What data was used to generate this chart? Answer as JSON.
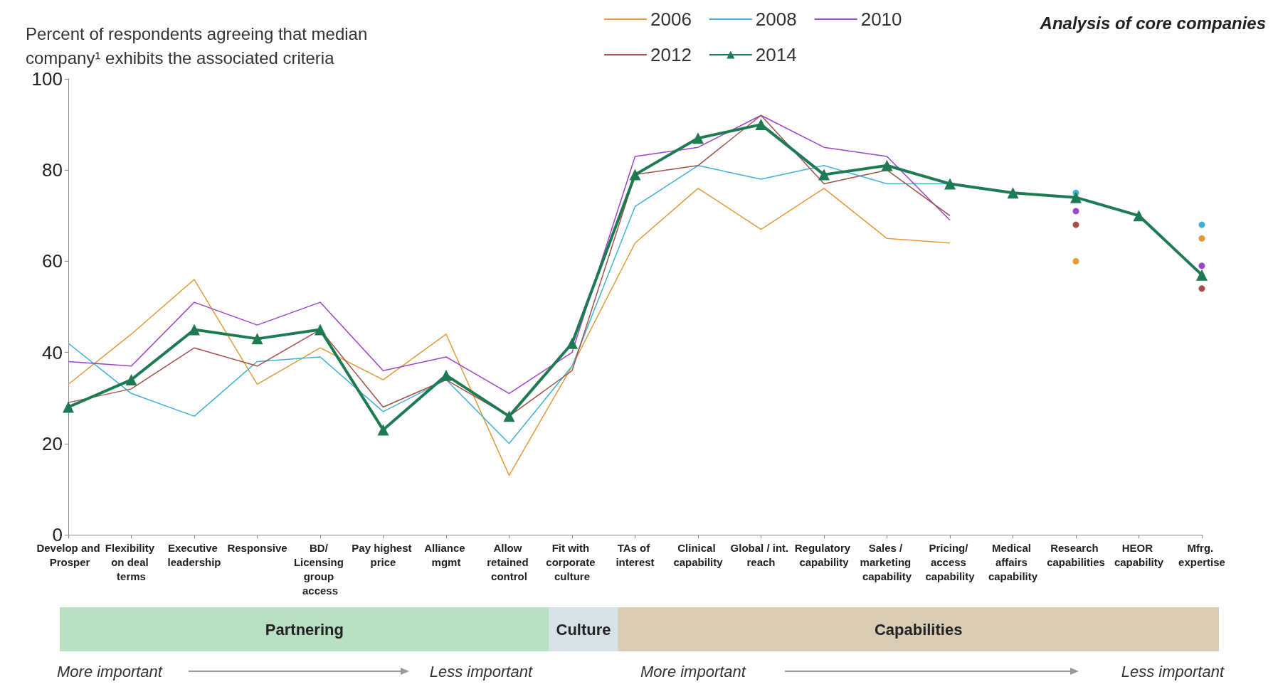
{
  "chart_data": {
    "type": "line",
    "ylabel": "Percent of respondents agreeing that median company¹ exhibits the associated criteria",
    "categories": [
      "Develop and Prosper",
      "Flexibility on deal terms",
      "Executive leadership",
      "Responsive",
      "BD/ Licensing group access",
      "Pay highest price",
      "Alliance mgmt",
      "Allow retained control",
      "Fit with corporate culture",
      "TAs of interest",
      "Clinical capability",
      "Global / int. reach",
      "Regulatory capability",
      "Sales / marketing capability",
      "Pricing/ access capability",
      "Medical affairs capability",
      "Research capabilities",
      "HEOR capability",
      "Mfrg. expertise"
    ],
    "series": [
      {
        "name": "2006",
        "color": "#e39a3b",
        "marker": "none",
        "values": [
          33,
          44,
          56,
          33,
          41,
          34,
          44,
          13,
          37,
          64,
          76,
          67,
          76,
          65,
          64,
          null,
          60,
          null,
          65
        ]
      },
      {
        "name": "2008",
        "color": "#3fb1d6",
        "marker": "none",
        "values": [
          42,
          31,
          26,
          38,
          39,
          27,
          34,
          20,
          37,
          72,
          81,
          78,
          81,
          77,
          77,
          null,
          75,
          null,
          68
        ]
      },
      {
        "name": "2010",
        "color": "#9b45c9",
        "marker": "none",
        "values": [
          38,
          37,
          51,
          46,
          51,
          36,
          39,
          31,
          40,
          83,
          85,
          92,
          85,
          83,
          69,
          null,
          71,
          null,
          59
        ]
      },
      {
        "name": "2012",
        "color": "#a0524a",
        "marker": "none",
        "values": [
          29,
          32,
          41,
          37,
          45,
          28,
          34,
          26,
          36,
          79,
          81,
          92,
          77,
          80,
          70,
          null,
          68,
          null,
          54
        ]
      },
      {
        "name": "2014",
        "color": "#1e7a52",
        "marker": "triangle",
        "values": [
          28,
          34,
          45,
          43,
          45,
          23,
          35,
          26,
          42,
          79,
          87,
          90,
          79,
          81,
          77,
          75,
          74,
          70,
          57
        ]
      }
    ],
    "ylim": [
      0,
      100
    ],
    "yticks": [
      0,
      20,
      40,
      60,
      80,
      100
    ],
    "grid": false,
    "legend": "top",
    "line_style": "solid",
    "annotations": [
      "Analysis of core companies",
      "Partnering",
      "Culture",
      "Capabilities",
      "More important",
      "Less important",
      "More important",
      "Less important"
    ]
  }
}
